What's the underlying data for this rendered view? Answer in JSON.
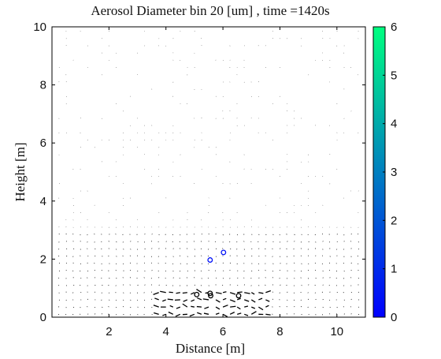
{
  "chart_data": {
    "type": "scatter",
    "title": "Aerosol Diameter bin 20 [um] , time =1420s",
    "xlabel": "Distance [m]",
    "ylabel": "Height [m]",
    "xlim": [
      0,
      11
    ],
    "ylim": [
      0,
      10
    ],
    "xticks": [
      "2",
      "4",
      "6",
      "8",
      "10"
    ],
    "yticks": [
      "0",
      "2",
      "4",
      "6",
      "8",
      "10"
    ],
    "colorbar": {
      "ticks": [
        "0",
        "1",
        "2",
        "3",
        "4",
        "5",
        "6"
      ],
      "range": [
        0,
        6
      ],
      "colors": [
        "#0000ff",
        "#00ff80"
      ]
    },
    "series": [
      {
        "type": "particles",
        "points": [
          {
            "x": 5.55,
            "y": 1.97,
            "value": 0.4
          },
          {
            "x": 6.02,
            "y": 2.23,
            "value": 0.4
          }
        ]
      },
      {
        "type": "particles",
        "points": [
          {
            "x": 5.08,
            "y": 0.78,
            "value": 0
          },
          {
            "x": 5.55,
            "y": 0.82,
            "value": 0
          },
          {
            "x": 5.57,
            "y": 0.74,
            "value": 0
          },
          {
            "x": 6.55,
            "y": 0.74,
            "value": 0
          }
        ]
      }
    ],
    "grid": false
  }
}
